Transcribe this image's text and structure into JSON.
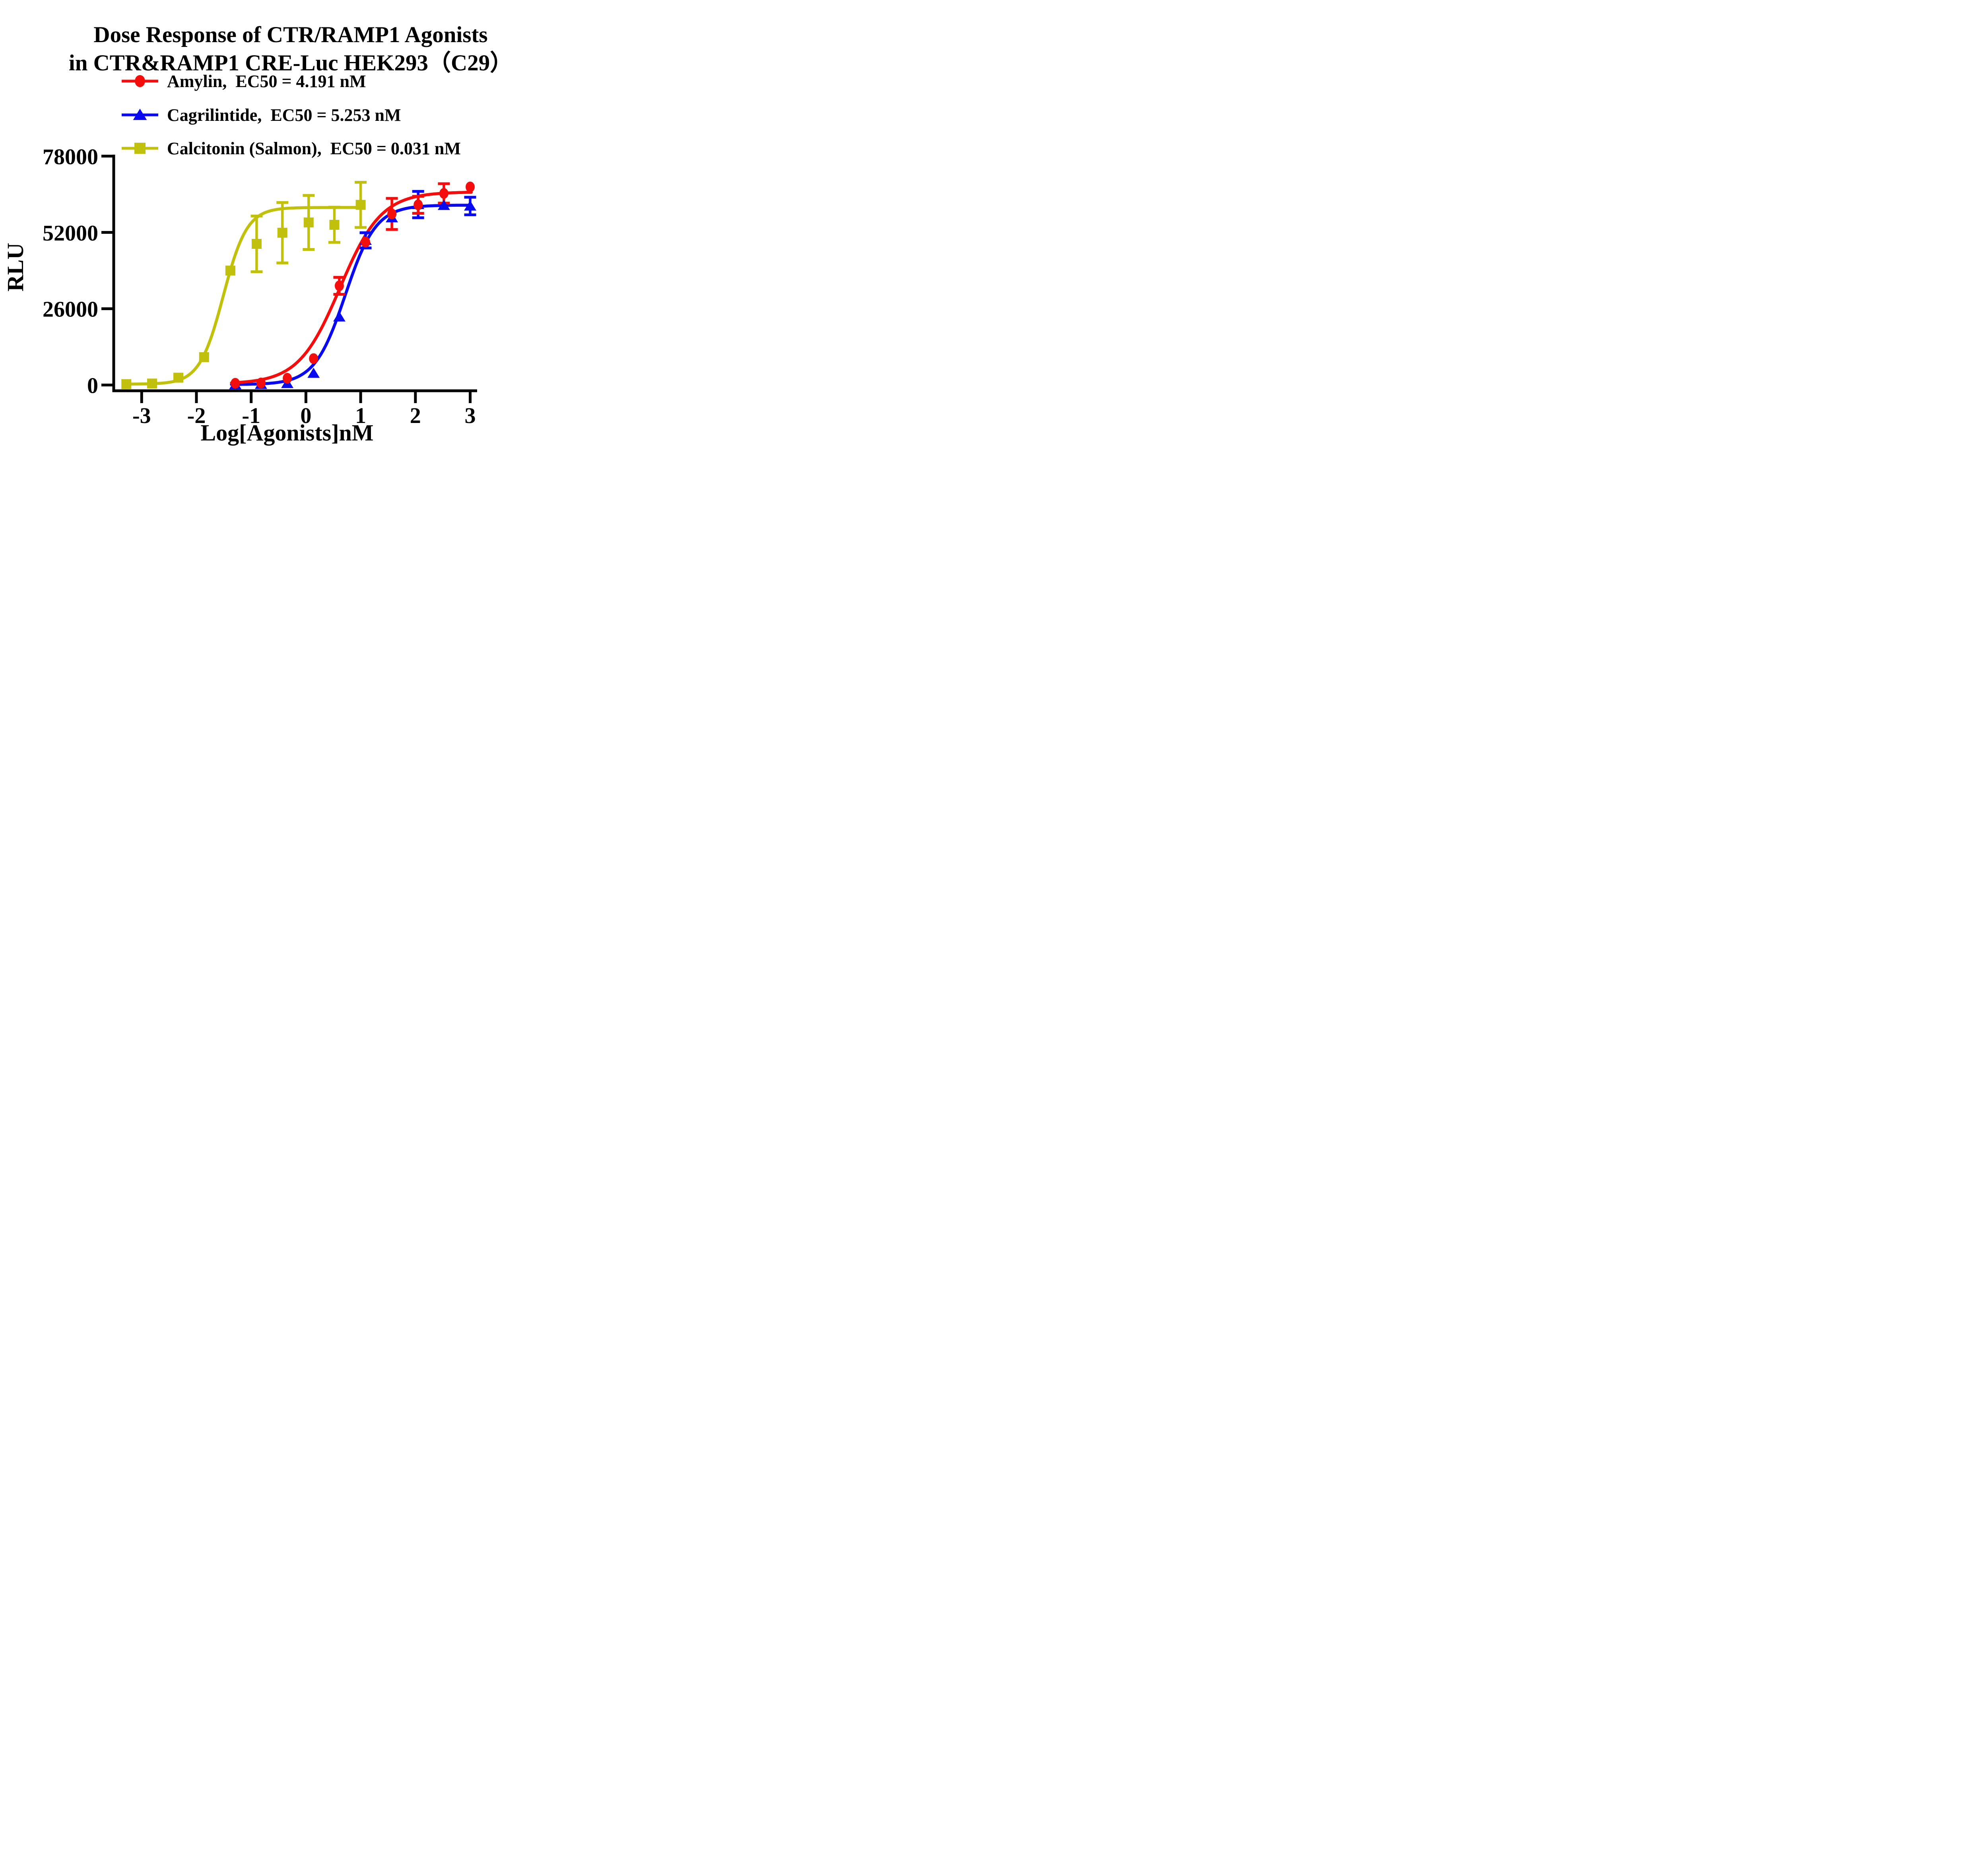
{
  "chart_data": {
    "type": "line",
    "title": "Dose Response of CTR/RAMP1 Agonists in CTR&RAMP1 CRE-Luc HEK293（C29）",
    "title_line1": "Dose Response of CTR/RAMP1 Agonists",
    "title_line2": "in CTR&RAMP1 CRE-Luc HEK293（C29）",
    "xlabel": "Log[Agonists]nM",
    "ylabel": "RLU",
    "xlim": [
      -3.55,
      3.15
    ],
    "ylim": [
      0,
      78000
    ],
    "grid": false,
    "legend_position": "top-left under title",
    "x_tick_values": [
      -3,
      -2,
      -1,
      0,
      1,
      2,
      3
    ],
    "x_tick_labels": [
      "-3",
      "-2",
      "-1",
      "0",
      "1",
      "2",
      "3"
    ],
    "y_tick_values": [
      0,
      26000,
      52000,
      78000
    ],
    "y_tick_labels": [
      "0",
      "26000",
      "52000",
      "78000"
    ],
    "series": [
      {
        "name": "Calcitonin (Salmon)",
        "legend_label": "Calcitonin (Salmon),  EC50 = 0.031 nM",
        "ec50_nM": 0.031,
        "color": "#c1c10d",
        "marker": "square",
        "points": [
          [
            -3.28,
            300,
            null
          ],
          [
            -2.81,
            500,
            null
          ],
          [
            -2.33,
            2500,
            null
          ],
          [
            -1.86,
            9500,
            null
          ],
          [
            -1.38,
            39000,
            null
          ],
          [
            -0.9,
            48100,
            9500
          ],
          [
            -0.43,
            51900,
            10300
          ],
          [
            0.05,
            55400,
            9200
          ],
          [
            0.52,
            54600,
            6000
          ],
          [
            1.0,
            61400,
            7700
          ]
        ],
        "fit": {
          "bottom": 300,
          "top": 60500,
          "logec50": -1.509,
          "hill": 2.0,
          "x_start": -3.34,
          "x_end": 1.02
        }
      },
      {
        "name": "Cagrilintide",
        "legend_label": "Cagrilintide,  EC50 = 5.253 nM",
        "ec50_nM": 5.253,
        "color": "#0a0af0",
        "marker": "triangle",
        "points": [
          [
            -1.29,
            100,
            null
          ],
          [
            -0.82,
            200,
            null
          ],
          [
            -0.34,
            500,
            null
          ],
          [
            0.14,
            4000,
            null
          ],
          [
            0.61,
            23200,
            null
          ],
          [
            1.09,
            49300,
            2600
          ],
          [
            1.57,
            57000,
            null
          ],
          [
            2.05,
            61500,
            4500
          ],
          [
            2.52,
            61200,
            null
          ],
          [
            3.0,
            61000,
            3000
          ]
        ],
        "fit": {
          "bottom": 150,
          "top": 61300,
          "logec50": 0.72,
          "hill": 1.55,
          "x_start": -1.36,
          "x_end": 3.02
        }
      },
      {
        "name": "Amylin",
        "legend_label": "Amylin,  EC50 = 4.191 nM",
        "ec50_nM": 4.191,
        "color": "#f50d0d",
        "marker": "circle",
        "points": [
          [
            -1.29,
            600,
            null
          ],
          [
            -0.82,
            700,
            null
          ],
          [
            -0.34,
            2300,
            null
          ],
          [
            0.14,
            9000,
            null
          ],
          [
            0.61,
            33800,
            2900
          ],
          [
            1.09,
            48700,
            null
          ],
          [
            1.57,
            58300,
            5300
          ],
          [
            2.05,
            61400,
            2900
          ],
          [
            2.52,
            65300,
            3300
          ],
          [
            3.0,
            67500,
            null
          ]
        ],
        "fit": {
          "bottom": 400,
          "top": 65800,
          "logec50": 0.622,
          "hill": 1.15,
          "x_start": -1.36,
          "x_end": 3.02
        }
      }
    ]
  }
}
